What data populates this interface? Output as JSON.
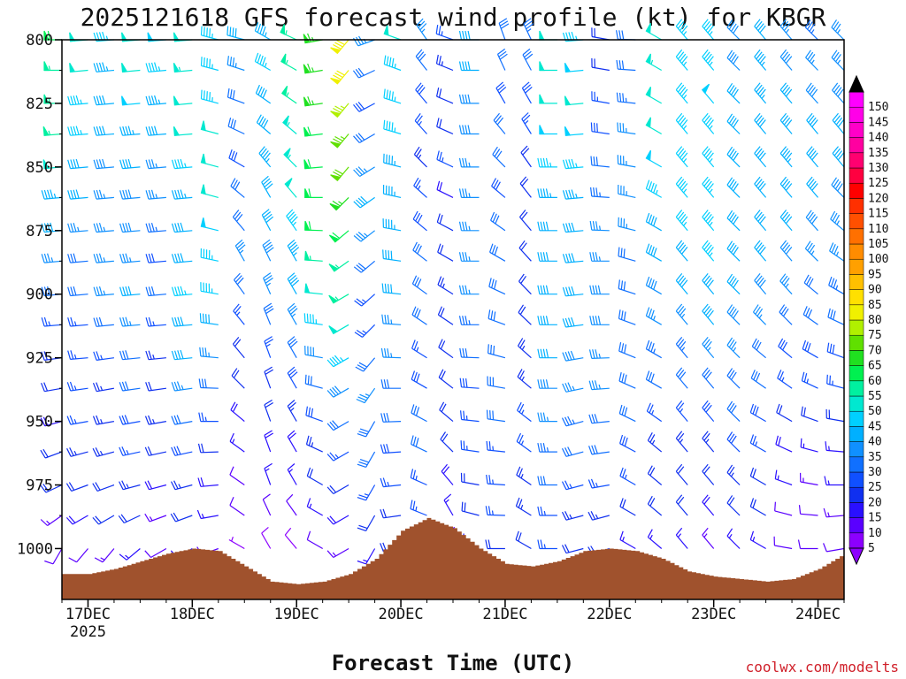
{
  "title": "2025121618 GFS forecast wind profile (kt) for KBGR",
  "xlabel": "Forecast Time (UTC)",
  "watermark": "coolwx.com/modelts",
  "chart_data": {
    "type": "wind-barb time-height profile",
    "title": "2025121618 GFS forecast wind profile (kt) for KBGR",
    "xlabel": "Forecast Time (UTC)",
    "ylabel": "",
    "units": "kt",
    "y_axis": {
      "ylim": [
        1020,
        800
      ],
      "ticks": [
        800,
        825,
        850,
        875,
        900,
        925,
        950,
        975,
        1000
      ]
    },
    "x_axis": {
      "ticks": [
        "17DEC",
        "18DEC",
        "19DEC",
        "20DEC",
        "21DEC",
        "22DEC",
        "23DEC",
        "24DEC"
      ],
      "sublabel": "2025",
      "tick_hours": [
        6,
        30,
        54,
        78,
        102,
        126,
        150,
        174
      ],
      "xlim_hours": [
        0,
        180
      ]
    },
    "levels": [
      1000,
      987,
      975,
      962,
      950,
      937,
      925,
      912,
      900,
      887,
      875,
      862,
      850,
      837,
      825,
      812,
      800
    ],
    "times_hours": [
      0,
      6,
      12,
      18,
      24,
      30,
      36,
      42,
      48,
      54,
      60,
      66,
      72,
      78,
      84,
      90,
      96,
      102,
      108,
      114,
      120,
      126,
      132,
      138,
      144,
      150,
      156,
      162,
      168,
      174,
      180
    ],
    "surface_pressure_hpa": [
      1010,
      1010,
      1008,
      1005,
      1002,
      1000,
      1001,
      1007,
      1013,
      1014,
      1013,
      1010,
      1004,
      993,
      988,
      992,
      1000,
      1006,
      1007,
      1005,
      1001,
      1000,
      1001,
      1004,
      1009,
      1011,
      1012,
      1013,
      1012,
      1008,
      1002
    ],
    "wind_speed_kt": [
      [
        10,
        14,
        20,
        20,
        18,
        20,
        22,
        25,
        30,
        35,
        40,
        44,
        50,
        55,
        55,
        57,
        60
      ],
      [
        10,
        18,
        22,
        24,
        25,
        25,
        25,
        25,
        30,
        30,
        35,
        40,
        40,
        45,
        47,
        51,
        50
      ],
      [
        13,
        20,
        22,
        24,
        23,
        24,
        26,
        30,
        35,
        35,
        35,
        37,
        38,
        40,
        42,
        43,
        45
      ],
      [
        15,
        22,
        24,
        26,
        28,
        30,
        32,
        35,
        40,
        35,
        38,
        39,
        41,
        44,
        48,
        50,
        52
      ],
      [
        10,
        14,
        18,
        22,
        24,
        22,
        24,
        25,
        30,
        28,
        33,
        35,
        37,
        40,
        43,
        45,
        48
      ],
      [
        15,
        20,
        24,
        28,
        30,
        35,
        42,
        40,
        45,
        42,
        40,
        43,
        46,
        50,
        52,
        53,
        52
      ],
      [
        10,
        15,
        18,
        22,
        25,
        30,
        35,
        40,
        45,
        46,
        48,
        50,
        52,
        50,
        47,
        47,
        45
      ],
      [
        7,
        10,
        12,
        15,
        18,
        20,
        22,
        25,
        30,
        35,
        32,
        30,
        28,
        30,
        32,
        35,
        40
      ],
      [
        8,
        12,
        15,
        18,
        20,
        22,
        26,
        32,
        35,
        38,
        40,
        42,
        44,
        41,
        40,
        45,
        44
      ],
      [
        9,
        12,
        16,
        19,
        24,
        28,
        32,
        36,
        40,
        44,
        47,
        51,
        54,
        54,
        55,
        55,
        55
      ],
      [
        12,
        15,
        20,
        24,
        28,
        30,
        38,
        45,
        50,
        55,
        60,
        60,
        60,
        62,
        65,
        65,
        67
      ],
      [
        14,
        18,
        22,
        26,
        30,
        38,
        45,
        50,
        55,
        55,
        60,
        65,
        70,
        73,
        77,
        80,
        80
      ],
      [
        15,
        20,
        25,
        30,
        30,
        35,
        30,
        25,
        25,
        30,
        35,
        40,
        35,
        30,
        28,
        30,
        35
      ],
      [
        20,
        22,
        25,
        28,
        30,
        32,
        35,
        37,
        40,
        42,
        43,
        44,
        44,
        45,
        45,
        45,
        50
      ],
      [
        25,
        25,
        25,
        30,
        30,
        28,
        27,
        30,
        32,
        30,
        28,
        25,
        23,
        25,
        28,
        31,
        35
      ],
      [
        10,
        15,
        18,
        20,
        20,
        22,
        22,
        22,
        24,
        22,
        20,
        18,
        25,
        20,
        22,
        24,
        25
      ],
      [
        15,
        20,
        20,
        25,
        25,
        28,
        30,
        33,
        35,
        35,
        35,
        35,
        37,
        38,
        39,
        40,
        40
      ],
      [
        20,
        25,
        25,
        26,
        30,
        32,
        32,
        30,
        30,
        30,
        30,
        28,
        30,
        30,
        28,
        30,
        32
      ],
      [
        22,
        24,
        24,
        25,
        25,
        24,
        23,
        22,
        21,
        20,
        20,
        20,
        22,
        25,
        28,
        31,
        34
      ],
      [
        25,
        27,
        30,
        33,
        36,
        38,
        40,
        40,
        40,
        40,
        42,
        44,
        46,
        48,
        50,
        52,
        52
      ],
      [
        20,
        23,
        26,
        30,
        33,
        35,
        38,
        40,
        40,
        40,
        42,
        44,
        46,
        48,
        50,
        48,
        45
      ],
      [
        20,
        24,
        27,
        30,
        32,
        35,
        37,
        38,
        38,
        37,
        35,
        33,
        30,
        28,
        25,
        22,
        20
      ],
      [
        15,
        20,
        25,
        28,
        30,
        31,
        30,
        30,
        30,
        32,
        35,
        36,
        36,
        35,
        33,
        31,
        30
      ],
      [
        15,
        20,
        22,
        24,
        26,
        30,
        33,
        35,
        38,
        40,
        42,
        45,
        48,
        50,
        52,
        53,
        50
      ],
      [
        15,
        20,
        22,
        24,
        26,
        30,
        33,
        35,
        40,
        42,
        45,
        45,
        45,
        45,
        45,
        45,
        45
      ],
      [
        14,
        18,
        20,
        24,
        28,
        32,
        36,
        40,
        42,
        45,
        45,
        45,
        45,
        46,
        48,
        47,
        45
      ],
      [
        15,
        20,
        24,
        28,
        30,
        32,
        35,
        38,
        40,
        42,
        42,
        42,
        40,
        40,
        40,
        38,
        38
      ],
      [
        15,
        20,
        22,
        25,
        28,
        30,
        32,
        35,
        38,
        40,
        40,
        40,
        42,
        42,
        43,
        43,
        42
      ],
      [
        10,
        12,
        15,
        18,
        22,
        25,
        28,
        32,
        36,
        38,
        40,
        42,
        43,
        42,
        40,
        38,
        36
      ],
      [
        10,
        12,
        14,
        17,
        20,
        25,
        28,
        30,
        32,
        35,
        38,
        40,
        40,
        40,
        38,
        36,
        33
      ],
      [
        12,
        14,
        15,
        17,
        20,
        25,
        28,
        30,
        33,
        35,
        37,
        38,
        40,
        40,
        38,
        36,
        35
      ]
    ],
    "wind_dir_deg": [
      [
        210,
        235,
        245,
        250,
        255,
        260,
        262,
        265,
        265,
        265,
        265,
        265,
        265,
        265,
        270,
        270,
        270
      ],
      [
        220,
        240,
        250,
        255,
        260,
        262,
        265,
        265,
        265,
        265,
        265,
        265,
        265,
        265,
        265,
        265,
        265
      ],
      [
        220,
        240,
        250,
        255,
        260,
        260,
        262,
        264,
        265,
        265,
        265,
        265,
        265,
        265,
        265,
        265,
        265
      ],
      [
        230,
        245,
        255,
        258,
        260,
        262,
        264,
        265,
        265,
        265,
        265,
        265,
        265,
        265,
        265,
        265,
        265
      ],
      [
        240,
        250,
        255,
        258,
        260,
        262,
        264,
        265,
        265,
        265,
        265,
        265,
        265,
        265,
        265,
        265,
        265
      ],
      [
        240,
        250,
        255,
        258,
        260,
        262,
        264,
        265,
        265,
        265,
        265,
        265,
        265,
        265,
        265,
        265,
        265
      ],
      [
        250,
        260,
        265,
        268,
        270,
        272,
        275,
        278,
        280,
        282,
        284,
        285,
        285,
        285,
        285,
        285,
        285
      ],
      [
        300,
        305,
        305,
        306,
        310,
        315,
        320,
        321,
        324,
        330,
        320,
        310,
        300,
        295,
        290,
        288,
        285
      ],
      [
        330,
        335,
        340,
        340,
        340,
        340,
        340,
        338,
        336,
        334,
        332,
        330,
        320,
        310,
        305,
        300,
        300
      ],
      [
        320,
        325,
        330,
        330,
        330,
        330,
        330,
        330,
        330,
        330,
        325,
        320,
        315,
        310,
        305,
        300,
        295
      ],
      [
        300,
        300,
        300,
        295,
        290,
        285,
        280,
        278,
        276,
        274,
        272,
        270,
        265,
        263,
        262,
        261,
        260
      ],
      [
        240,
        240,
        240,
        240,
        240,
        240,
        240,
        240,
        240,
        235,
        230,
        225,
        220,
        220,
        220,
        220,
        220
      ],
      [
        210,
        210,
        210,
        210,
        210,
        215,
        220,
        225,
        228,
        230,
        232,
        235,
        238,
        240,
        242,
        245,
        250
      ],
      [
        260,
        262,
        264,
        266,
        268,
        270,
        272,
        274,
        276,
        278,
        280,
        282,
        284,
        286,
        288,
        290,
        290
      ],
      [
        290,
        292,
        294,
        296,
        298,
        300,
        302,
        304,
        306,
        308,
        310,
        312,
        315,
        318,
        320,
        322,
        325
      ],
      [
        340,
        330,
        320,
        315,
        310,
        308,
        306,
        304,
        302,
        300,
        298,
        296,
        295,
        294,
        293,
        292,
        290
      ],
      [
        290,
        285,
        280,
        278,
        276,
        274,
        272,
        270,
        270,
        270,
        270,
        270,
        270,
        270,
        270,
        270,
        270
      ],
      [
        270,
        272,
        274,
        276,
        278,
        280,
        285,
        290,
        295,
        300,
        305,
        310,
        315,
        320,
        330,
        335,
        340
      ],
      [
        300,
        302,
        304,
        306,
        308,
        310,
        312,
        314,
        316,
        318,
        320,
        322,
        325,
        328,
        330,
        332,
        335
      ],
      [
        270,
        270,
        270,
        270,
        270,
        270,
        270,
        270,
        270,
        270,
        270,
        270,
        270,
        270,
        270,
        270,
        270
      ],
      [
        255,
        255,
        255,
        255,
        255,
        258,
        260,
        262,
        264,
        265,
        265,
        265,
        265,
        265,
        265,
        265,
        265
      ],
      [
        250,
        255,
        260,
        262,
        264,
        266,
        268,
        270,
        270,
        270,
        272,
        274,
        276,
        278,
        280,
        280,
        280
      ],
      [
        300,
        300,
        300,
        298,
        296,
        294,
        292,
        290,
        288,
        286,
        284,
        282,
        280,
        278,
        276,
        274,
        272
      ],
      [
        310,
        310,
        310,
        310,
        305,
        300,
        300,
        300,
        300,
        300,
        300,
        300,
        300,
        300,
        300,
        300,
        300
      ],
      [
        320,
        320,
        320,
        320,
        320,
        320,
        320,
        320,
        320,
        320,
        320,
        320,
        320,
        320,
        320,
        320,
        320
      ],
      [
        320,
        320,
        320,
        320,
        320,
        320,
        320,
        320,
        320,
        320,
        320,
        320,
        320,
        320,
        320,
        320,
        320
      ],
      [
        315,
        315,
        315,
        315,
        315,
        315,
        315,
        315,
        315,
        315,
        315,
        315,
        315,
        315,
        315,
        315,
        315
      ],
      [
        300,
        300,
        300,
        300,
        300,
        305,
        310,
        315,
        320,
        320,
        320,
        320,
        320,
        320,
        320,
        320,
        320
      ],
      [
        280,
        285,
        290,
        295,
        300,
        305,
        310,
        315,
        318,
        320,
        320,
        320,
        320,
        320,
        320,
        320,
        320
      ],
      [
        270,
        275,
        280,
        285,
        290,
        295,
        300,
        305,
        310,
        315,
        318,
        320,
        320,
        320,
        318,
        316,
        315
      ],
      [
        260,
        265,
        270,
        275,
        280,
        285,
        290,
        295,
        300,
        305,
        310,
        315,
        320,
        320,
        318,
        316,
        315
      ]
    ],
    "colorbar": {
      "levels": [
        5,
        10,
        15,
        20,
        25,
        30,
        35,
        40,
        45,
        50,
        55,
        60,
        65,
        70,
        75,
        80,
        85,
        90,
        95,
        100,
        105,
        110,
        115,
        120,
        125,
        130,
        135,
        140,
        145,
        150
      ],
      "colors": [
        "#8c00ff",
        "#5a00ff",
        "#2a10ff",
        "#1030f0",
        "#1050ff",
        "#1070ff",
        "#1090ff",
        "#00b0ff",
        "#00d0ff",
        "#00e8d0",
        "#00f0a0",
        "#00f050",
        "#20e020",
        "#60e000",
        "#b0f000",
        "#f0f000",
        "#ffe000",
        "#ffc000",
        "#ffa000",
        "#ff8c00",
        "#ff7000",
        "#ff5000",
        "#ff3000",
        "#ff0000",
        "#ff0040",
        "#ff0070",
        "#ff00a0",
        "#ff00c8",
        "#ff00e8",
        "#ff00ff"
      ]
    },
    "terrain_color": "#a0522d"
  }
}
